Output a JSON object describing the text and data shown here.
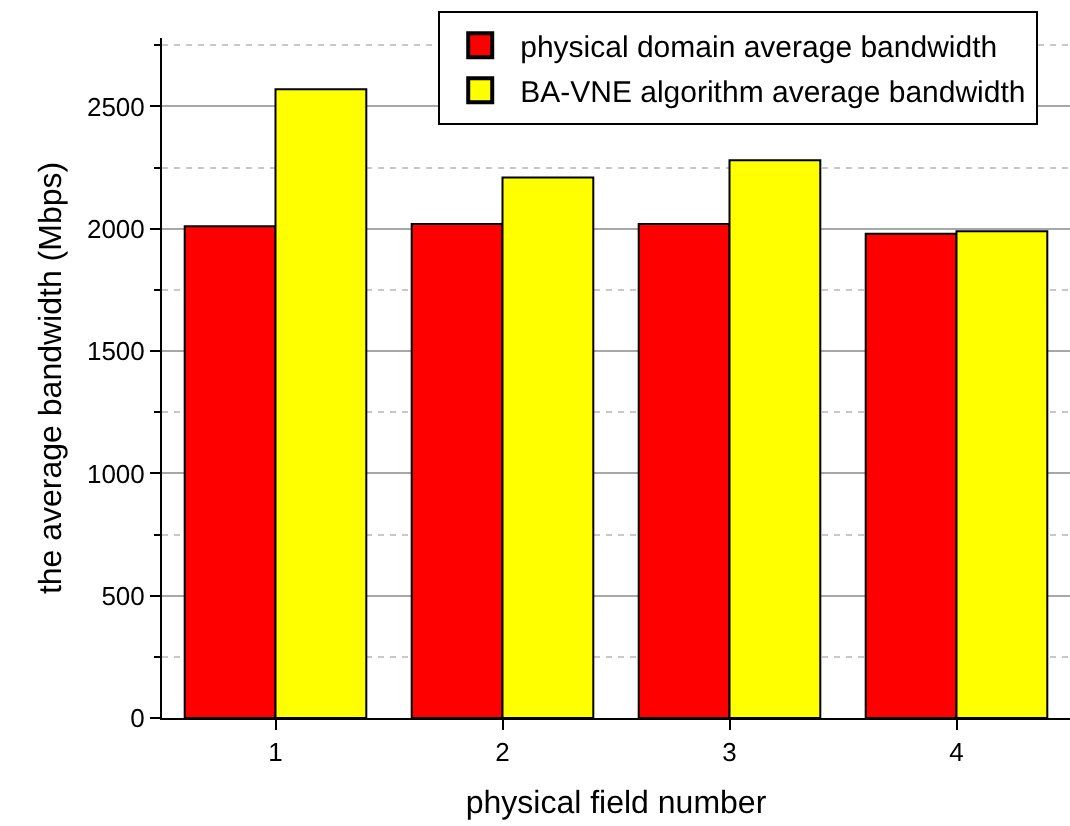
{
  "chart_data": {
    "type": "bar",
    "xlabel": "physical field number",
    "ylabel": "the average bandwidth (Mbps)",
    "categories": [
      "1",
      "2",
      "3",
      "4"
    ],
    "series": [
      {
        "name": "physical domain average bandwidth",
        "color": "#ff0000",
        "values": [
          2010,
          2020,
          2020,
          1980
        ]
      },
      {
        "name": "BA-VNE algorithm average bandwidth",
        "color": "#ffff00",
        "values": [
          2570,
          2210,
          2280,
          1990
        ]
      }
    ],
    "ylim": [
      0,
      2780
    ],
    "yticks": [
      0,
      {
        "value": 250,
        "label": null
      },
      500,
      {
        "value": 750,
        "label": null
      },
      1000,
      {
        "value": 1250,
        "label": null
      },
      1500,
      {
        "value": 1750,
        "label": null
      },
      2000,
      {
        "value": 2250,
        "label": null
      },
      2500,
      {
        "value": 2750,
        "label": null
      }
    ],
    "grid": "y",
    "legend": "top right"
  }
}
